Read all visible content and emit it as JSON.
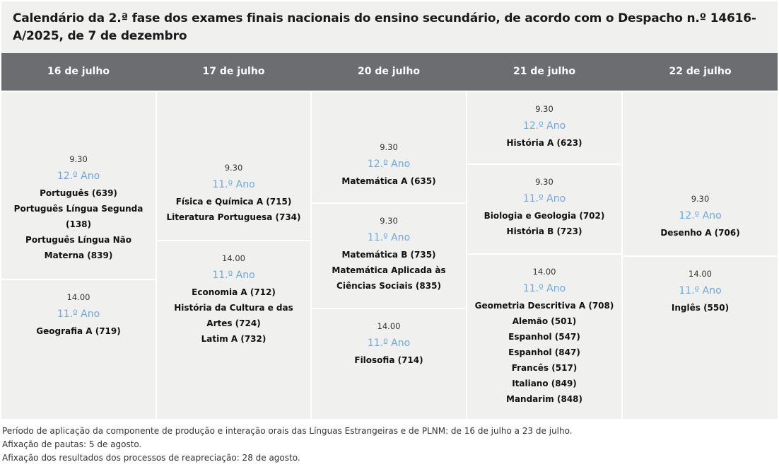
{
  "title": "Calendário da 2.ª fase dos exames finais nacionais do ensino secundário, de acordo com o Despacho n.º 14616-A/2025, de 7 de dezembro",
  "colors": {
    "header_bg": "#6c6d70",
    "cell_bg": "#f0f0ef",
    "year_text": "#6fa8dc"
  },
  "days": [
    {
      "label": "16 de julho",
      "slots": [
        {
          "time": "9.30",
          "year": "12.º Ano",
          "subjects": [
            "Português (639)",
            "Português Língua Segunda (138)",
            "Português Língua Não Materna (839)"
          ]
        },
        {
          "time": "14.00",
          "year": "11.º Ano",
          "subjects": [
            "Geografia A (719)"
          ]
        }
      ]
    },
    {
      "label": "17 de julho",
      "slots": [
        {
          "time": "9.30",
          "year": "11.º Ano",
          "subjects": [
            "Física e Química A (715)",
            "Literatura Portuguesa (734)"
          ]
        },
        {
          "time": "14.00",
          "year": "11.º Ano",
          "subjects": [
            "Economia A (712)",
            "História da Cultura e das Artes (724)",
            "Latim A (732)"
          ]
        }
      ]
    },
    {
      "label": "20 de julho",
      "slots": [
        {
          "time": "9.30",
          "year": "12.º Ano",
          "subjects": [
            "Matemática A (635)"
          ]
        },
        {
          "time": "9.30",
          "year": "11.º Ano",
          "subjects": [
            "Matemática B (735)",
            "Matemática Aplicada às Ciências Sociais (835)"
          ]
        },
        {
          "time": "14.00",
          "year": "11.º Ano",
          "subjects": [
            "Filosofia (714)"
          ]
        }
      ]
    },
    {
      "label": "21 de julho",
      "slots": [
        {
          "time": "9.30",
          "year": "12.º Ano",
          "subjects": [
            "História A (623)"
          ]
        },
        {
          "time": "9.30",
          "year": "11.º Ano",
          "subjects": [
            "Biologia e Geologia (702)",
            "História B (723)"
          ]
        },
        {
          "time": "14.00",
          "year": "11.º Ano",
          "subjects": [
            "Geometria Descritiva A (708)",
            "Alemão (501)",
            "Espanhol (547)",
            "Espanhol (847)",
            "Francês (517)",
            "Italiano (849)",
            "Mandarim (848)"
          ]
        }
      ]
    },
    {
      "label": "22 de julho",
      "slots": [
        {
          "time": "9.30",
          "year": "12.º Ano",
          "subjects": [
            "Desenho A (706)"
          ]
        },
        {
          "time": "14.00",
          "year": "11.º Ano",
          "subjects": [
            "Inglês (550)"
          ]
        }
      ]
    }
  ],
  "notes": [
    "Período de aplicação da componente de produção e interação orais das Línguas Estrangeiras e de PLNM: de 16 de julho a 23 de julho.",
    "Afixação de pautas: 5 de agosto.",
    "Afixação dos resultados dos processos de reapreciação: 28 de agosto."
  ]
}
